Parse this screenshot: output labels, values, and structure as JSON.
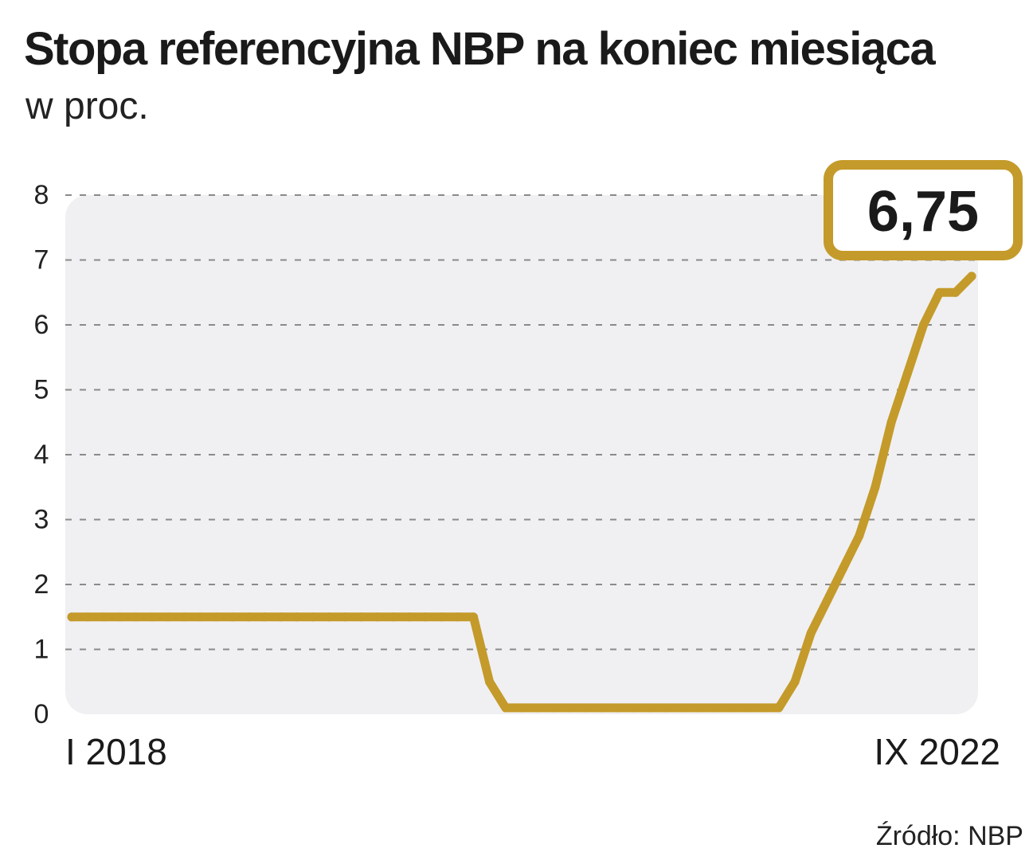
{
  "title": "Stopa referencyjna NBP na koniec miesiąca",
  "subtitle": "w proc.",
  "source": "Źródło: NBP",
  "colors": {
    "line": "#c49a2a",
    "plot_bg": "#f0f0f2",
    "grid": "#8a8a8a",
    "text": "#1a1a1a"
  },
  "chart_data": {
    "type": "line",
    "title": "Stopa referencyjna NBP na koniec miesiąca",
    "ylabel": "w proc.",
    "xlabel": "",
    "ylim": [
      0,
      8
    ],
    "yticks": [
      "0",
      "1",
      "2",
      "3",
      "4",
      "5",
      "6",
      "7",
      "8"
    ],
    "grid": true,
    "x_start_label": "I 2018",
    "x_end_label": "IX 2022",
    "callout": "6,75",
    "series": [
      {
        "name": "Stopa referencyjna NBP",
        "values": [
          1.5,
          1.5,
          1.5,
          1.5,
          1.5,
          1.5,
          1.5,
          1.5,
          1.5,
          1.5,
          1.5,
          1.5,
          1.5,
          1.5,
          1.5,
          1.5,
          1.5,
          1.5,
          1.5,
          1.5,
          1.5,
          1.5,
          1.5,
          1.5,
          1.5,
          1.5,
          0.5,
          0.1,
          0.1,
          0.1,
          0.1,
          0.1,
          0.1,
          0.1,
          0.1,
          0.1,
          0.1,
          0.1,
          0.1,
          0.1,
          0.1,
          0.1,
          0.1,
          0.1,
          0.1,
          0.5,
          1.25,
          1.75,
          2.25,
          2.75,
          3.5,
          4.5,
          5.25,
          6.0,
          6.5,
          6.5,
          6.75
        ]
      }
    ]
  }
}
